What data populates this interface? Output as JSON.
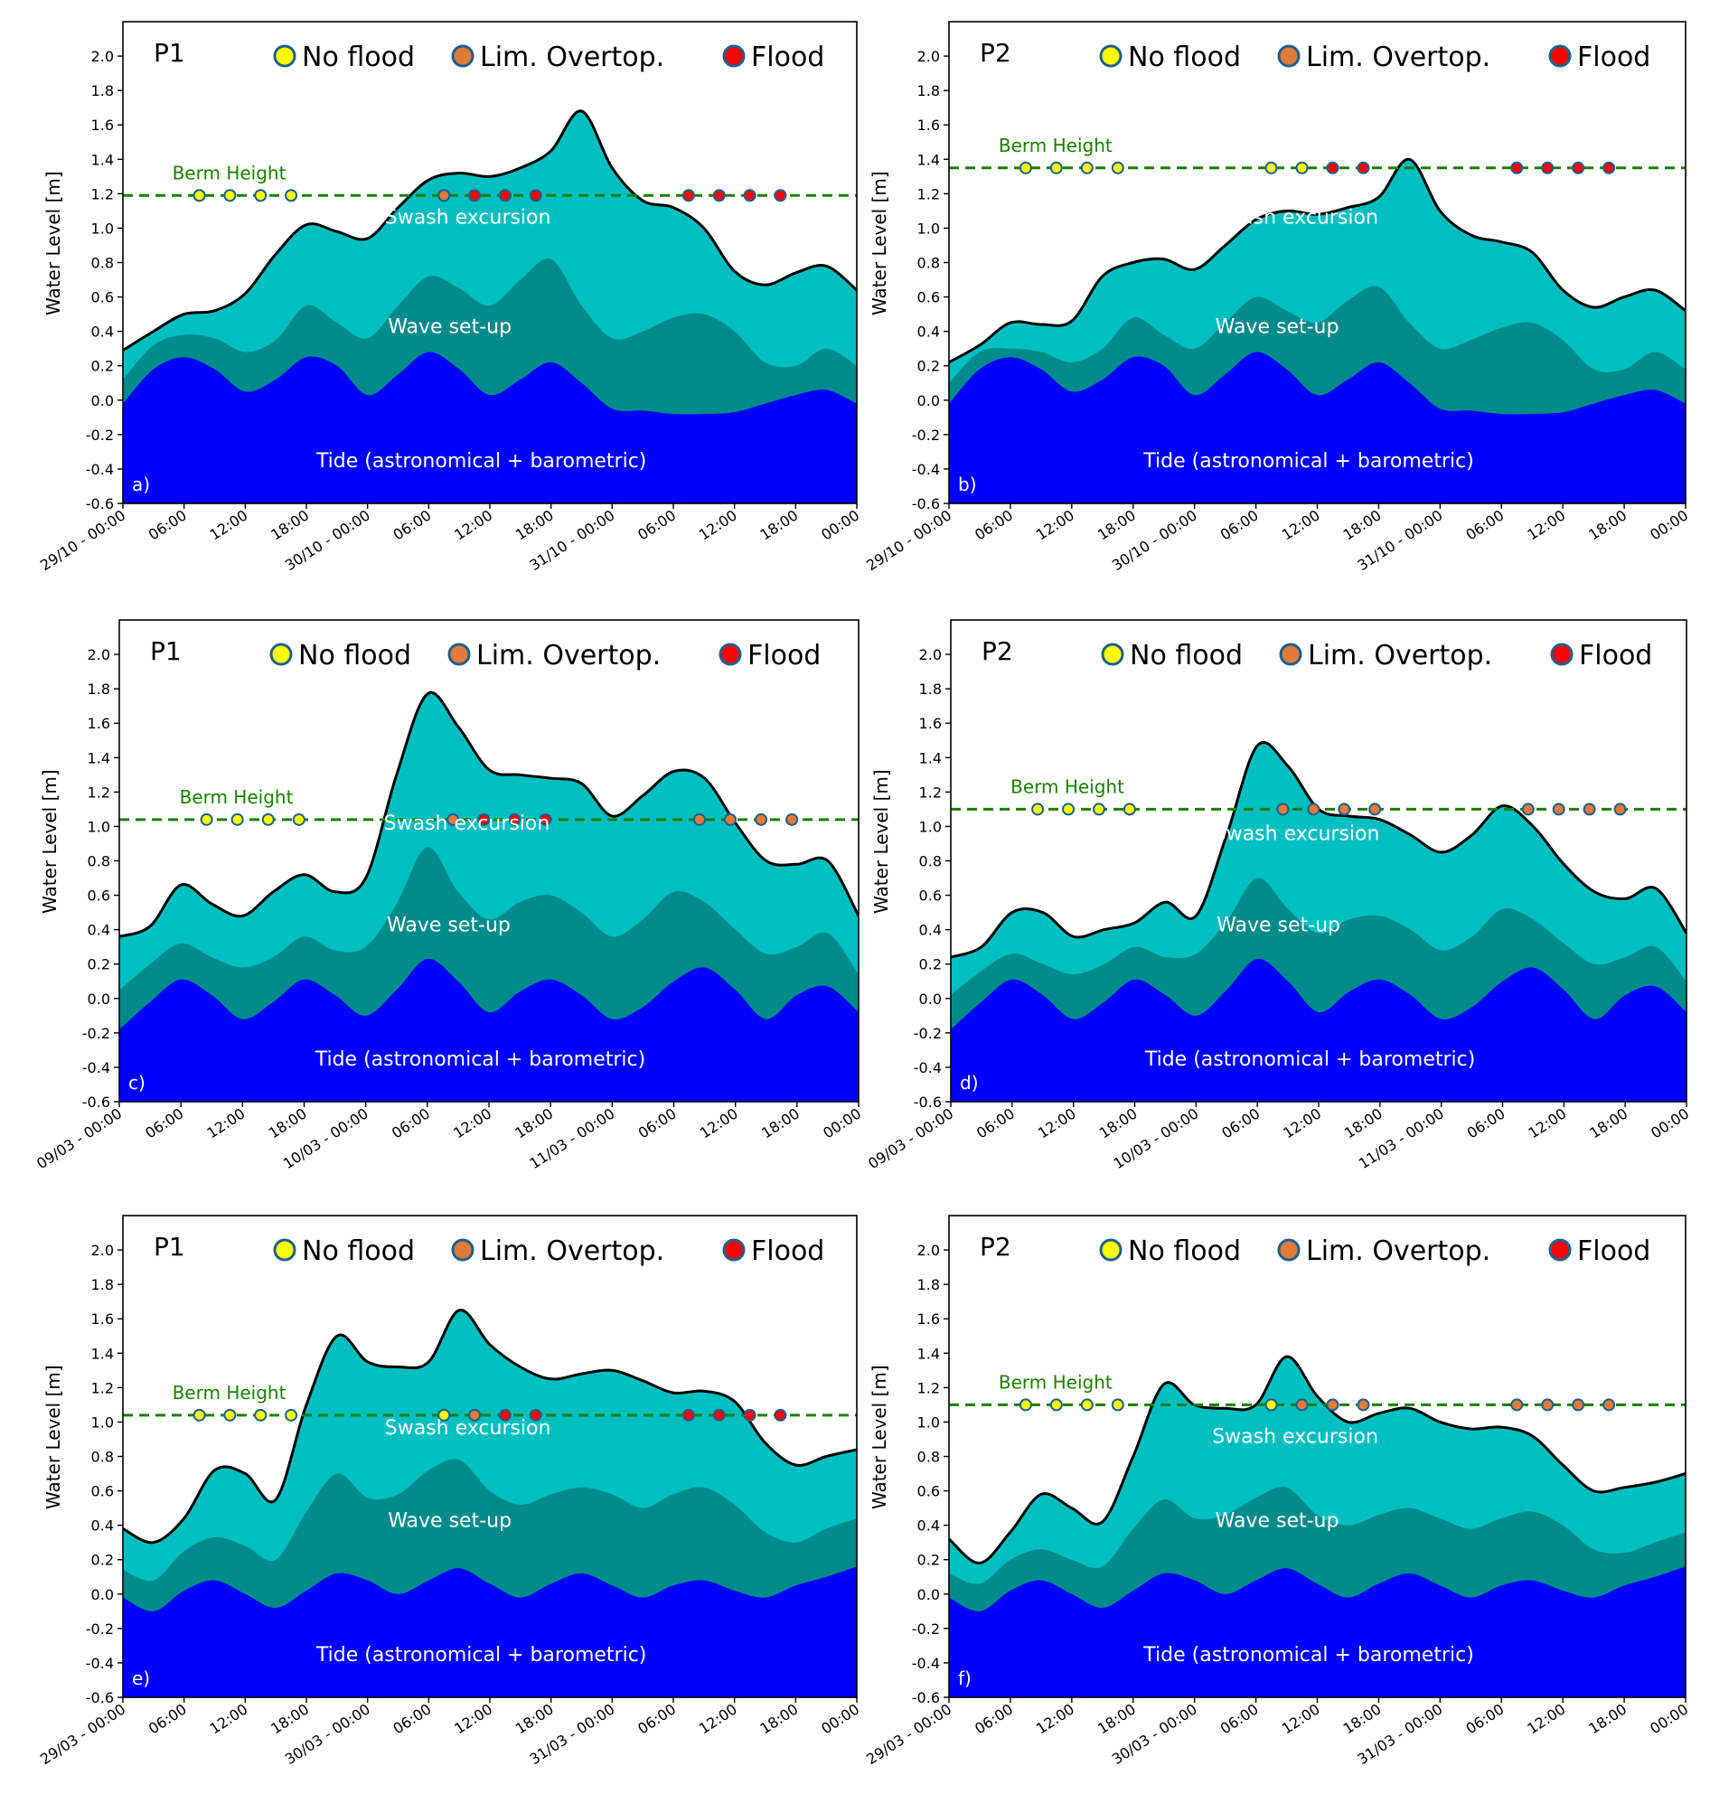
{
  "figure": {
    "ylabel": "Water Level [m]",
    "legend": {
      "no_flood": "No flood",
      "lim_overtop": "Lim. Overtop.",
      "flood": "Flood"
    },
    "layer_labels": {
      "swash": "Swash excursion",
      "setup": "Wave set-up",
      "tide": "Tide (astronomical + barometric)"
    },
    "berm_label": "Berm Height",
    "colors": {
      "tide": "#0000ff",
      "setup": "#008b8b",
      "swash": "#00bfc0",
      "envelope": "#000000",
      "berm": "#1a7f00",
      "no_flood": "#ffff00",
      "lim_overtop": "#e07b39",
      "flood": "#ff0000",
      "marker_edge": "#1f5f8b",
      "layer_text": "#ffffff"
    }
  },
  "chart_data": [
    {
      "id": "a",
      "panel_label": "a)",
      "site": "P1",
      "type": "area",
      "ylim": [
        -0.6,
        2.2
      ],
      "yticks": [
        "-0.6",
        "-0.4",
        "-0.2",
        "0.0",
        "0.2",
        "0.4",
        "0.6",
        "0.8",
        "1.0",
        "1.2",
        "1.4",
        "1.6",
        "1.8",
        "2.0"
      ],
      "xlim_hours": [
        0,
        72
      ],
      "xtick_labels": [
        "29/10 - 00:00",
        "06:00",
        "12:00",
        "18:00",
        "30/10 - 00:00",
        "06:00",
        "12:00",
        "18:00",
        "31/10 - 00:00",
        "06:00",
        "12:00",
        "18:00",
        "00:00"
      ],
      "berm_height": 1.19,
      "hours": [
        0,
        3,
        6,
        9,
        12,
        15,
        18,
        21,
        24,
        27,
        30,
        33,
        36,
        39,
        42,
        45,
        48,
        51,
        54,
        57,
        60,
        63,
        66,
        69,
        72
      ],
      "tide": [
        -0.02,
        0.18,
        0.25,
        0.18,
        0.05,
        0.12,
        0.25,
        0.2,
        0.03,
        0.15,
        0.28,
        0.18,
        0.03,
        0.12,
        0.22,
        0.1,
        -0.05,
        -0.06,
        -0.08,
        -0.08,
        -0.07,
        -0.02,
        0.03,
        0.06,
        -0.02
      ],
      "setup_top": [
        0.12,
        0.32,
        0.38,
        0.36,
        0.28,
        0.35,
        0.55,
        0.45,
        0.36,
        0.55,
        0.72,
        0.65,
        0.55,
        0.7,
        0.82,
        0.55,
        0.36,
        0.4,
        0.48,
        0.5,
        0.4,
        0.22,
        0.2,
        0.3,
        0.2
      ],
      "envelope": [
        0.29,
        0.4,
        0.5,
        0.52,
        0.62,
        0.85,
        1.02,
        0.98,
        0.94,
        1.12,
        1.28,
        1.32,
        1.3,
        1.35,
        1.45,
        1.68,
        1.35,
        1.16,
        1.12,
        1.0,
        0.75,
        0.67,
        0.74,
        0.78,
        0.64
      ],
      "markers": [
        {
          "hour": 7.5,
          "status": "no_flood"
        },
        {
          "hour": 10.5,
          "status": "no_flood"
        },
        {
          "hour": 13.5,
          "status": "no_flood"
        },
        {
          "hour": 16.5,
          "status": "no_flood"
        },
        {
          "hour": 31.5,
          "status": "lim_overtop"
        },
        {
          "hour": 34.5,
          "status": "flood"
        },
        {
          "hour": 37.5,
          "status": "flood"
        },
        {
          "hour": 40.5,
          "status": "flood"
        },
        {
          "hour": 55.5,
          "status": "flood"
        },
        {
          "hour": 58.5,
          "status": "flood"
        },
        {
          "hour": 61.5,
          "status": "flood"
        },
        {
          "hour": 64.5,
          "status": "flood"
        }
      ]
    },
    {
      "id": "b",
      "panel_label": "b)",
      "site": "P2",
      "type": "area",
      "ylim": [
        -0.6,
        2.2
      ],
      "yticks": [
        "-0.6",
        "-0.4",
        "-0.2",
        "0.0",
        "0.2",
        "0.4",
        "0.6",
        "0.8",
        "1.0",
        "1.2",
        "1.4",
        "1.6",
        "1.8",
        "2.0"
      ],
      "xlim_hours": [
        0,
        72
      ],
      "xtick_labels": [
        "29/10 - 00:00",
        "06:00",
        "12:00",
        "18:00",
        "30/10 - 00:00",
        "06:00",
        "12:00",
        "18:00",
        "31/10 - 00:00",
        "06:00",
        "12:00",
        "18:00",
        "00:00"
      ],
      "berm_height": 1.35,
      "hours": [
        0,
        3,
        6,
        9,
        12,
        15,
        18,
        21,
        24,
        27,
        30,
        33,
        36,
        39,
        42,
        45,
        48,
        51,
        54,
        57,
        60,
        63,
        66,
        69,
        72
      ],
      "tide": [
        -0.02,
        0.18,
        0.25,
        0.18,
        0.05,
        0.12,
        0.25,
        0.2,
        0.03,
        0.15,
        0.28,
        0.18,
        0.03,
        0.12,
        0.22,
        0.1,
        -0.05,
        -0.06,
        -0.08,
        -0.08,
        -0.07,
        -0.02,
        0.03,
        0.06,
        -0.02
      ],
      "setup_top": [
        0.1,
        0.28,
        0.3,
        0.28,
        0.22,
        0.3,
        0.48,
        0.38,
        0.3,
        0.45,
        0.6,
        0.52,
        0.45,
        0.58,
        0.66,
        0.45,
        0.3,
        0.35,
        0.42,
        0.45,
        0.35,
        0.18,
        0.18,
        0.28,
        0.18
      ],
      "envelope": [
        0.22,
        0.32,
        0.45,
        0.44,
        0.46,
        0.72,
        0.8,
        0.82,
        0.76,
        0.9,
        1.05,
        1.1,
        1.08,
        1.12,
        1.18,
        1.4,
        1.1,
        0.96,
        0.92,
        0.86,
        0.64,
        0.54,
        0.6,
        0.64,
        0.52
      ],
      "markers": [
        {
          "hour": 7.5,
          "status": "no_flood"
        },
        {
          "hour": 10.5,
          "status": "no_flood"
        },
        {
          "hour": 13.5,
          "status": "no_flood"
        },
        {
          "hour": 16.5,
          "status": "no_flood"
        },
        {
          "hour": 31.5,
          "status": "no_flood"
        },
        {
          "hour": 34.5,
          "status": "no_flood"
        },
        {
          "hour": 37.5,
          "status": "flood"
        },
        {
          "hour": 40.5,
          "status": "flood"
        },
        {
          "hour": 55.5,
          "status": "flood"
        },
        {
          "hour": 58.5,
          "status": "flood"
        },
        {
          "hour": 61.5,
          "status": "flood"
        },
        {
          "hour": 64.5,
          "status": "flood"
        }
      ]
    },
    {
      "id": "c",
      "panel_label": "c)",
      "site": "P1",
      "type": "area",
      "ylim": [
        -0.6,
        2.2
      ],
      "yticks": [
        "-0.6",
        "-0.4",
        "-0.2",
        "0.0",
        "0.2",
        "0.4",
        "0.6",
        "0.8",
        "1.0",
        "1.2",
        "1.4",
        "1.6",
        "1.8",
        "2.0"
      ],
      "xlim_hours": [
        0,
        72
      ],
      "xtick_labels": [
        "09/03 - 00:00",
        "06:00",
        "12:00",
        "18:00",
        "10/03 - 00:00",
        "06:00",
        "12:00",
        "18:00",
        "11/03 - 00:00",
        "06:00",
        "12:00",
        "18:00",
        "00:00"
      ],
      "berm_height": 1.04,
      "hours": [
        0,
        3,
        6,
        9,
        12,
        15,
        18,
        21,
        24,
        27,
        30,
        33,
        36,
        39,
        42,
        45,
        48,
        51,
        54,
        57,
        60,
        63,
        66,
        69,
        72
      ],
      "tide": [
        -0.18,
        -0.02,
        0.11,
        0.02,
        -0.12,
        -0.02,
        0.11,
        0.02,
        -0.1,
        0.05,
        0.23,
        0.1,
        -0.08,
        0.04,
        0.11,
        0.02,
        -0.12,
        -0.05,
        0.1,
        0.18,
        0.05,
        -0.12,
        0.02,
        0.07,
        -0.08
      ],
      "setup_top": [
        0.05,
        0.2,
        0.32,
        0.24,
        0.18,
        0.24,
        0.36,
        0.28,
        0.3,
        0.55,
        0.88,
        0.62,
        0.46,
        0.56,
        0.6,
        0.5,
        0.36,
        0.46,
        0.62,
        0.56,
        0.4,
        0.26,
        0.3,
        0.38,
        0.14
      ],
      "envelope": [
        0.36,
        0.42,
        0.66,
        0.55,
        0.48,
        0.62,
        0.72,
        0.62,
        0.7,
        1.3,
        1.77,
        1.58,
        1.33,
        1.3,
        1.28,
        1.25,
        1.06,
        1.18,
        1.32,
        1.28,
        1.02,
        0.8,
        0.78,
        0.8,
        0.48
      ],
      "markers": [
        {
          "hour": 8.5,
          "status": "no_flood"
        },
        {
          "hour": 11.5,
          "status": "no_flood"
        },
        {
          "hour": 14.5,
          "status": "no_flood"
        },
        {
          "hour": 17.5,
          "status": "no_flood"
        },
        {
          "hour": 32.5,
          "status": "lim_overtop"
        },
        {
          "hour": 35.5,
          "status": "flood"
        },
        {
          "hour": 38.5,
          "status": "flood"
        },
        {
          "hour": 41.5,
          "status": "flood"
        },
        {
          "hour": 56.5,
          "status": "lim_overtop"
        },
        {
          "hour": 59.5,
          "status": "lim_overtop"
        },
        {
          "hour": 62.5,
          "status": "lim_overtop"
        },
        {
          "hour": 65.5,
          "status": "lim_overtop"
        }
      ]
    },
    {
      "id": "d",
      "panel_label": "d)",
      "site": "P2",
      "type": "area",
      "ylim": [
        -0.6,
        2.2
      ],
      "yticks": [
        "-0.6",
        "-0.4",
        "-0.2",
        "0.0",
        "0.2",
        "0.4",
        "0.6",
        "0.8",
        "1.0",
        "1.2",
        "1.4",
        "1.6",
        "1.8",
        "2.0"
      ],
      "xlim_hours": [
        0,
        72
      ],
      "xtick_labels": [
        "09/03 - 00:00",
        "06:00",
        "12:00",
        "18:00",
        "10/03 - 00:00",
        "06:00",
        "12:00",
        "18:00",
        "11/03 - 00:00",
        "06:00",
        "12:00",
        "18:00",
        "00:00"
      ],
      "berm_height": 1.1,
      "hours": [
        0,
        3,
        6,
        9,
        12,
        15,
        18,
        21,
        24,
        27,
        30,
        33,
        36,
        39,
        42,
        45,
        48,
        51,
        54,
        57,
        60,
        63,
        66,
        69,
        72
      ],
      "tide": [
        -0.18,
        -0.02,
        0.11,
        0.02,
        -0.12,
        -0.02,
        0.11,
        0.02,
        -0.1,
        0.05,
        0.23,
        0.1,
        -0.08,
        0.04,
        0.11,
        0.02,
        -0.12,
        -0.05,
        0.1,
        0.18,
        0.05,
        -0.12,
        0.02,
        0.07,
        -0.08
      ],
      "setup_top": [
        0.02,
        0.16,
        0.26,
        0.2,
        0.14,
        0.2,
        0.3,
        0.24,
        0.26,
        0.45,
        0.7,
        0.52,
        0.38,
        0.46,
        0.48,
        0.4,
        0.28,
        0.36,
        0.52,
        0.46,
        0.32,
        0.2,
        0.24,
        0.3,
        0.1
      ],
      "envelope": [
        0.24,
        0.3,
        0.5,
        0.5,
        0.36,
        0.4,
        0.44,
        0.56,
        0.48,
        0.95,
        1.47,
        1.35,
        1.1,
        1.06,
        1.04,
        0.95,
        0.85,
        0.95,
        1.12,
        1.0,
        0.78,
        0.62,
        0.58,
        0.64,
        0.38
      ],
      "markers": [
        {
          "hour": 8.5,
          "status": "no_flood"
        },
        {
          "hour": 11.5,
          "status": "no_flood"
        },
        {
          "hour": 14.5,
          "status": "no_flood"
        },
        {
          "hour": 17.5,
          "status": "no_flood"
        },
        {
          "hour": 32.5,
          "status": "lim_overtop"
        },
        {
          "hour": 35.5,
          "status": "lim_overtop"
        },
        {
          "hour": 38.5,
          "status": "lim_overtop"
        },
        {
          "hour": 41.5,
          "status": "lim_overtop"
        },
        {
          "hour": 56.5,
          "status": "lim_overtop"
        },
        {
          "hour": 59.5,
          "status": "lim_overtop"
        },
        {
          "hour": 62.5,
          "status": "lim_overtop"
        },
        {
          "hour": 65.5,
          "status": "lim_overtop"
        }
      ]
    },
    {
      "id": "e",
      "panel_label": "e)",
      "site": "P1",
      "type": "area",
      "ylim": [
        -0.6,
        2.2
      ],
      "yticks": [
        "-0.6",
        "-0.4",
        "-0.2",
        "0.0",
        "0.2",
        "0.4",
        "0.6",
        "0.8",
        "1.0",
        "1.2",
        "1.4",
        "1.6",
        "1.8",
        "2.0"
      ],
      "xlim_hours": [
        0,
        72
      ],
      "xtick_labels": [
        "29/03 - 00:00",
        "06:00",
        "12:00",
        "18:00",
        "30/03 - 00:00",
        "06:00",
        "12:00",
        "18:00",
        "31/03 - 00:00",
        "06:00",
        "12:00",
        "18:00",
        "00:00"
      ],
      "berm_height": 1.04,
      "hours": [
        0,
        3,
        6,
        9,
        12,
        15,
        18,
        21,
        24,
        27,
        30,
        33,
        36,
        39,
        42,
        45,
        48,
        51,
        54,
        57,
        60,
        63,
        66,
        69,
        72
      ],
      "tide": [
        -0.02,
        -0.1,
        0.02,
        0.08,
        0.0,
        -0.08,
        0.02,
        0.12,
        0.08,
        0.0,
        0.08,
        0.15,
        0.06,
        -0.02,
        0.06,
        0.12,
        0.05,
        -0.02,
        0.05,
        0.08,
        0.02,
        -0.02,
        0.05,
        0.1,
        0.16
      ],
      "setup_top": [
        0.14,
        0.08,
        0.25,
        0.33,
        0.28,
        0.2,
        0.48,
        0.7,
        0.56,
        0.58,
        0.72,
        0.78,
        0.6,
        0.52,
        0.58,
        0.62,
        0.58,
        0.5,
        0.58,
        0.62,
        0.52,
        0.36,
        0.3,
        0.38,
        0.44
      ],
      "envelope": [
        0.38,
        0.3,
        0.44,
        0.72,
        0.7,
        0.55,
        1.1,
        1.5,
        1.35,
        1.32,
        1.35,
        1.65,
        1.45,
        1.32,
        1.25,
        1.28,
        1.3,
        1.24,
        1.17,
        1.18,
        1.12,
        0.88,
        0.75,
        0.8,
        0.84
      ],
      "markers": [
        {
          "hour": 7.5,
          "status": "no_flood"
        },
        {
          "hour": 10.5,
          "status": "no_flood"
        },
        {
          "hour": 13.5,
          "status": "no_flood"
        },
        {
          "hour": 16.5,
          "status": "no_flood"
        },
        {
          "hour": 31.5,
          "status": "no_flood"
        },
        {
          "hour": 34.5,
          "status": "lim_overtop"
        },
        {
          "hour": 37.5,
          "status": "flood"
        },
        {
          "hour": 40.5,
          "status": "flood"
        },
        {
          "hour": 55.5,
          "status": "flood"
        },
        {
          "hour": 58.5,
          "status": "flood"
        },
        {
          "hour": 61.5,
          "status": "flood"
        },
        {
          "hour": 64.5,
          "status": "flood"
        }
      ]
    },
    {
      "id": "f",
      "panel_label": "f)",
      "site": "P2",
      "type": "area",
      "ylim": [
        -0.6,
        2.2
      ],
      "yticks": [
        "-0.6",
        "-0.4",
        "-0.2",
        "0.0",
        "0.2",
        "0.4",
        "0.6",
        "0.8",
        "1.0",
        "1.2",
        "1.4",
        "1.6",
        "1.8",
        "2.0"
      ],
      "xlim_hours": [
        0,
        72
      ],
      "xtick_labels": [
        "29/03 - 00:00",
        "06:00",
        "12:00",
        "18:00",
        "30/03 - 00:00",
        "06:00",
        "12:00",
        "18:00",
        "31/03 - 00:00",
        "06:00",
        "12:00",
        "18:00",
        "00:00"
      ],
      "berm_height": 1.1,
      "hours": [
        0,
        3,
        6,
        9,
        12,
        15,
        18,
        21,
        24,
        27,
        30,
        33,
        36,
        39,
        42,
        45,
        48,
        51,
        54,
        57,
        60,
        63,
        66,
        69,
        72
      ],
      "tide": [
        -0.02,
        -0.1,
        0.02,
        0.08,
        0.0,
        -0.08,
        0.02,
        0.12,
        0.08,
        0.0,
        0.08,
        0.15,
        0.06,
        -0.02,
        0.06,
        0.12,
        0.05,
        -0.02,
        0.05,
        0.08,
        0.02,
        -0.02,
        0.05,
        0.1,
        0.16
      ],
      "setup_top": [
        0.12,
        0.06,
        0.2,
        0.26,
        0.2,
        0.16,
        0.38,
        0.55,
        0.44,
        0.46,
        0.56,
        0.62,
        0.46,
        0.4,
        0.46,
        0.5,
        0.44,
        0.38,
        0.44,
        0.48,
        0.4,
        0.26,
        0.24,
        0.3,
        0.36
      ],
      "envelope": [
        0.32,
        0.18,
        0.36,
        0.58,
        0.5,
        0.42,
        0.8,
        1.22,
        1.1,
        1.08,
        1.1,
        1.38,
        1.15,
        1.0,
        1.05,
        1.08,
        1.0,
        0.96,
        0.97,
        0.92,
        0.75,
        0.6,
        0.62,
        0.65,
        0.7
      ],
      "markers": [
        {
          "hour": 7.5,
          "status": "no_flood"
        },
        {
          "hour": 10.5,
          "status": "no_flood"
        },
        {
          "hour": 13.5,
          "status": "no_flood"
        },
        {
          "hour": 16.5,
          "status": "no_flood"
        },
        {
          "hour": 31.5,
          "status": "no_flood"
        },
        {
          "hour": 34.5,
          "status": "lim_overtop"
        },
        {
          "hour": 37.5,
          "status": "lim_overtop"
        },
        {
          "hour": 40.5,
          "status": "lim_overtop"
        },
        {
          "hour": 55.5,
          "status": "lim_overtop"
        },
        {
          "hour": 58.5,
          "status": "lim_overtop"
        },
        {
          "hour": 61.5,
          "status": "lim_overtop"
        },
        {
          "hour": 64.5,
          "status": "lim_overtop"
        }
      ]
    }
  ]
}
